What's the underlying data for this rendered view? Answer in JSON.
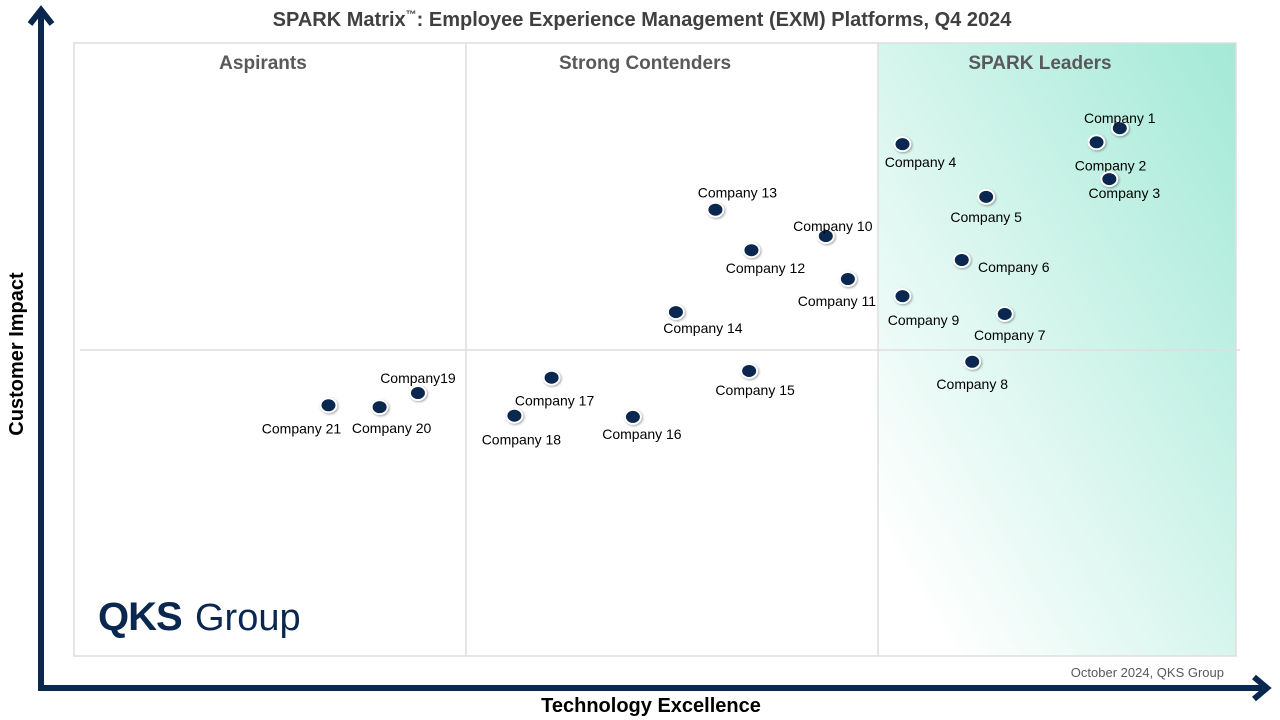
{
  "chart_data": {
    "type": "scatter",
    "title": "SPARK Matrix™: Employee Experience Management (EXM) Platforms, Q4 2024",
    "title_main": "SPARK Matrix",
    "title_tm": "™",
    "title_rest": ": Employee Experience Management (EXM) Platforms, Q4 2024",
    "xlabel": "Technology Excellence",
    "ylabel": "Customer Impact",
    "xlim": [
      0,
      100
    ],
    "ylim": [
      0,
      100
    ],
    "grid": false,
    "quadrants": [
      "Aspirants",
      "Strong Contenders",
      "SPARK Leaders"
    ],
    "footer": "October 2024, QKS Group",
    "logo": "QKS Group",
    "colors": {
      "point": "#0a2750",
      "axis": "#0a2750",
      "leaders_gradient": "#a3e9d6"
    },
    "points": [
      {
        "name": "Company 1",
        "x": 90.0,
        "y": 86.1
      },
      {
        "name": "Company 2",
        "x": 88.0,
        "y": 83.8
      },
      {
        "name": "Company 3",
        "x": 89.1,
        "y": 77.8
      },
      {
        "name": "Company 4",
        "x": 71.3,
        "y": 83.5
      },
      {
        "name": "Company 5",
        "x": 78.5,
        "y": 74.9
      },
      {
        "name": "Company 6",
        "x": 76.4,
        "y": 64.6
      },
      {
        "name": "Company 7",
        "x": 80.1,
        "y": 55.8
      },
      {
        "name": "Company 8",
        "x": 77.3,
        "y": 48.0
      },
      {
        "name": "Company 9",
        "x": 71.3,
        "y": 58.7
      },
      {
        "name": "Company 10",
        "x": 64.7,
        "y": 68.5
      },
      {
        "name": "Company 11",
        "x": 66.6,
        "y": 61.5
      },
      {
        "name": "Company 12",
        "x": 58.3,
        "y": 66.2
      },
      {
        "name": "Company 13",
        "x": 55.2,
        "y": 72.8
      },
      {
        "name": "Company 14",
        "x": 51.8,
        "y": 56.1
      },
      {
        "name": "Company 15",
        "x": 58.1,
        "y": 46.5
      },
      {
        "name": "Company 16",
        "x": 48.1,
        "y": 39.0
      },
      {
        "name": "Company 17",
        "x": 41.1,
        "y": 45.4
      },
      {
        "name": "Company 18",
        "x": 37.9,
        "y": 39.2
      },
      {
        "name": "Company19",
        "x": 29.6,
        "y": 42.9
      },
      {
        "name": "Company 20",
        "x": 26.3,
        "y": 40.6
      },
      {
        "name": "Company 21",
        "x": 21.9,
        "y": 40.9
      }
    ]
  }
}
